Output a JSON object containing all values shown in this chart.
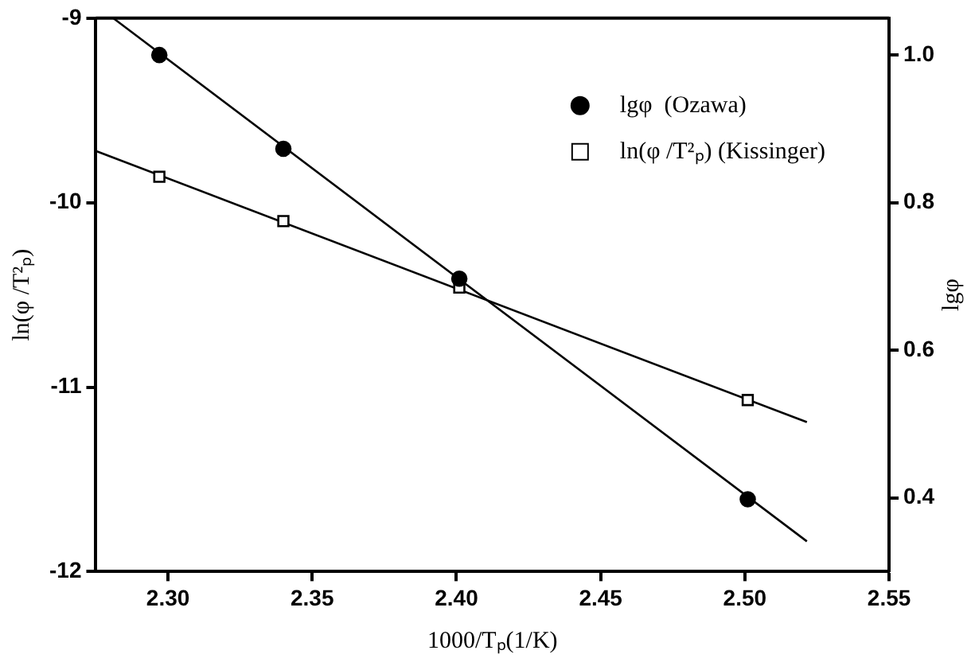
{
  "chart_data": {
    "type": "scatter",
    "xlabel": "1000/Tₚ(1/K)",
    "ylabel": "ln(φ /T²ₚ)",
    "y2label": "lgφ",
    "xlim": [
      2.275,
      2.55
    ],
    "xticks": [
      {
        "value": 2.3,
        "label": "2.30"
      },
      2.35,
      {
        "value": 2.4,
        "label": "2.40"
      },
      2.45,
      {
        "value": 2.5,
        "label": "2.50"
      },
      2.55
    ],
    "ylim": [
      -12,
      -9
    ],
    "yticks": [
      -12,
      -11,
      -10,
      -9
    ],
    "y2lim": [
      0.3,
      1.05
    ],
    "y2ticks": [
      0.4,
      0.6,
      0.8,
      {
        "value": 1.0,
        "label": "1.0"
      }
    ],
    "grid": false,
    "legend": "top right",
    "series": [
      {
        "name": "lgφ  (Ozawa)",
        "marker": "circle",
        "axis": "y2",
        "color": "#000000",
        "x": [
          2.297,
          2.34,
          2.401,
          2.501
        ],
        "values": [
          1.0,
          0.873,
          0.697,
          0.398
        ]
      },
      {
        "name": "ln(φ /T²ₚ) (Kissinger)",
        "marker": "square",
        "color": "#000000",
        "x": [
          2.297,
          2.34,
          2.401,
          2.501
        ],
        "values": [
          -9.86,
          -10.1,
          -10.46,
          -11.07
        ]
      },
      {
        "type": "line",
        "marker": "none",
        "axis": "y2",
        "color": "#000000",
        "x": [
          2.281,
          2.5215
        ],
        "values": [
          1.05,
          0.341
        ]
      },
      {
        "type": "line",
        "marker": "none",
        "color": "#000000",
        "x": [
          2.275,
          2.5215
        ],
        "values": [
          -9.72,
          -11.19
        ]
      }
    ]
  }
}
